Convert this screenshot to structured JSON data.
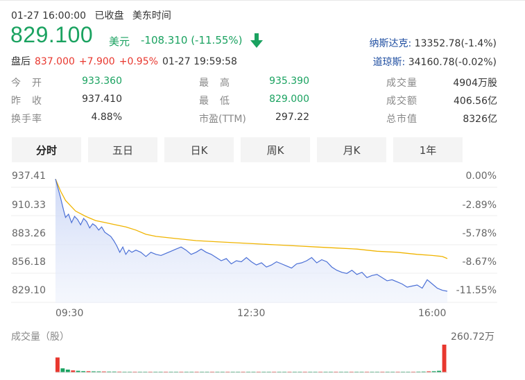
{
  "header": {
    "datetime": "01-27 16:00:00",
    "market_status": "已收盘",
    "timezone": "美东时间",
    "price": "829.100",
    "currency": "美元",
    "change": "-108.310 (-11.55%)",
    "direction_icon": "down-arrow-icon",
    "accent_down": "#1aa260",
    "accent_up": "#e8372e"
  },
  "indices": [
    {
      "name": "纳斯达克:",
      "value": "13352.78(-1.4%)"
    },
    {
      "name": "道琼斯:",
      "value": "34160.78(-0.02%)"
    }
  ],
  "after_hours": {
    "label": "盘后",
    "price": "837.000",
    "change": "+7.900",
    "pct": "+0.95%",
    "time": "01-27 19:59:58"
  },
  "stats": [
    {
      "label": "今　开",
      "value": "933.360"
    },
    {
      "label": "最　高",
      "value": "935.390"
    },
    {
      "label": "成交量",
      "value": "4904万股"
    },
    {
      "label": "昨　收",
      "value": "937.410"
    },
    {
      "label": "最　低",
      "value": "829.000"
    },
    {
      "label": "成交额",
      "value": "406.56亿"
    },
    {
      "label": "换手率",
      "value": "4.88%"
    },
    {
      "label": "市盈(TTM)",
      "value": "297.22"
    },
    {
      "label": "总市值",
      "value": "8326亿"
    }
  ],
  "tabs": [
    {
      "label": "分时",
      "active": true
    },
    {
      "label": "五日",
      "active": false
    },
    {
      "label": "日K",
      "active": false
    },
    {
      "label": "周K",
      "active": false
    },
    {
      "label": "月K",
      "active": false
    },
    {
      "label": "1年",
      "active": false
    }
  ],
  "chart_data": {
    "type": "line",
    "y_ticks": [
      "937.41",
      "910.33",
      "883.26",
      "856.18",
      "829.10"
    ],
    "pct_ticks": [
      "0.00%",
      "-2.89%",
      "-5.78%",
      "-8.67%",
      "-11.55%"
    ],
    "x_ticks": [
      "09:30",
      "12:30",
      "16:00"
    ],
    "ylim": [
      829.1,
      937.41
    ],
    "prev_close": 937.41,
    "x_minutes_range": [
      0,
      390
    ],
    "series": [
      {
        "color": "#4a6fd6",
        "x": [
          0,
          3,
          5,
          8,
          10,
          13,
          16,
          19,
          22,
          25,
          28,
          31,
          34,
          37,
          40,
          43,
          46,
          49,
          52,
          55,
          58,
          61,
          64,
          67,
          70,
          73,
          76,
          80,
          85,
          90,
          95,
          100,
          105,
          110,
          115,
          120,
          125,
          130,
          135,
          140,
          145,
          150,
          155,
          160,
          165,
          170,
          175,
          180,
          185,
          190,
          195,
          200,
          205,
          210,
          215,
          220,
          225,
          230,
          235,
          240,
          245,
          250,
          255,
          260,
          265,
          270,
          275,
          280,
          285,
          290,
          295,
          300,
          305,
          310,
          315,
          320,
          325,
          330,
          335,
          340,
          345,
          350,
          355,
          360,
          365,
          370,
          375,
          380,
          385,
          390
        ],
        "values": [
          935.39,
          925,
          918,
          906,
          899,
          902,
          894,
          900,
          897,
          892,
          898,
          895,
          889,
          893,
          891,
          887,
          890,
          885,
          883,
          881,
          877,
          872,
          866,
          871,
          864,
          868,
          866,
          868,
          866,
          862,
          866,
          864,
          863,
          865,
          867,
          869,
          871,
          868,
          864,
          866,
          869,
          866,
          864,
          861,
          858,
          860,
          855,
          858,
          857,
          861,
          857,
          854,
          856,
          852,
          854,
          857,
          855,
          853,
          851,
          855,
          856,
          858,
          861,
          856,
          859,
          857,
          852,
          849,
          847,
          846,
          849,
          845,
          847,
          842,
          844,
          845,
          842,
          839,
          840,
          838,
          836,
          833,
          834,
          835,
          832,
          840,
          836,
          832,
          830,
          829.1
        ]
      },
      {
        "color": "#f0b400",
        "x": [
          0,
          5,
          10,
          20,
          30,
          40,
          50,
          60,
          70,
          80,
          90,
          100,
          120,
          140,
          160,
          180,
          200,
          220,
          240,
          260,
          280,
          300,
          320,
          340,
          360,
          375,
          385,
          390
        ],
        "values": [
          935.39,
          924,
          915,
          905,
          900,
          896,
          894,
          892,
          890,
          887,
          883,
          881,
          879,
          877,
          876,
          875,
          874,
          873,
          872,
          871,
          870,
          869,
          867,
          866,
          864,
          863,
          862,
          860
        ]
      }
    ],
    "volume": {
      "label": "成交量（股）",
      "max_label": "260.72万",
      "color_up": "#e8372e",
      "color_down": "#1aa260",
      "max": 2607200,
      "values": [
        1400000,
        380000,
        260000,
        180000,
        150000,
        120000,
        110000,
        100000,
        90000,
        85000,
        80000,
        75000,
        70000,
        68000,
        65000,
        60000,
        58000,
        55000,
        52000,
        50000,
        48000,
        47000,
        46000,
        45000,
        44000,
        43000,
        42000,
        41000,
        40000,
        40000,
        40000,
        39000,
        38000,
        37000,
        36000,
        36000,
        35000,
        35000,
        35000,
        34000,
        34000,
        34000,
        33000,
        33000,
        33000,
        33000,
        32000,
        32000,
        32000,
        32000,
        31000,
        31000,
        31000,
        31000,
        30000,
        30000,
        30000,
        30000,
        30000,
        31000,
        32000,
        33000,
        35000,
        37000,
        40000,
        42000,
        45000,
        48000,
        52000,
        60000,
        70000,
        80000,
        95000,
        110000,
        150000,
        2607200
      ]
    }
  }
}
